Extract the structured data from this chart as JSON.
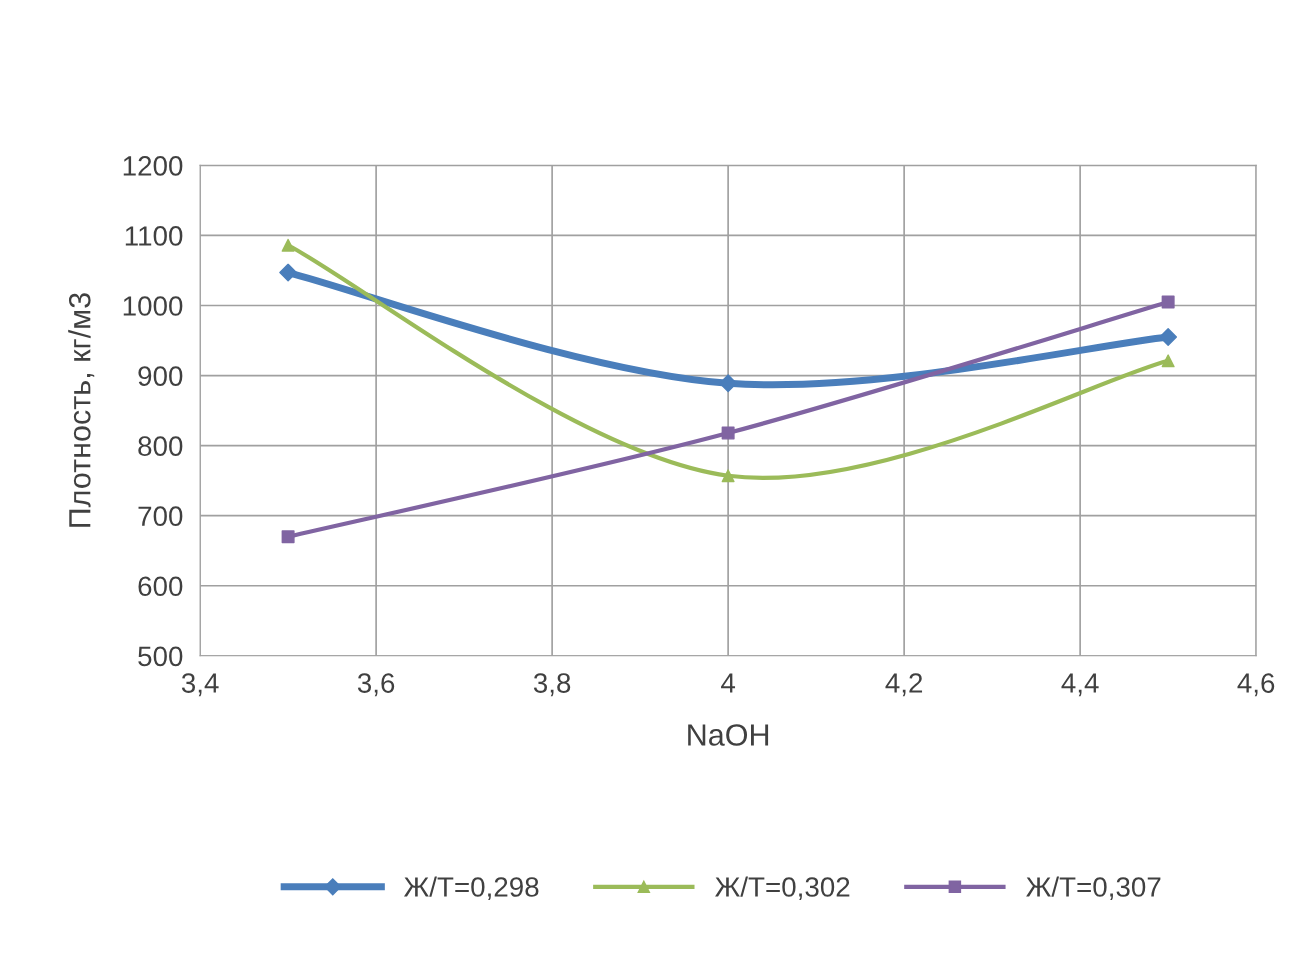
{
  "chart_data": {
    "type": "line",
    "xlabel": "NaOH",
    "ylabel": "Плотность, кг/м3",
    "x": [
      3.5,
      4,
      4.5
    ],
    "series": [
      {
        "name": "Ж/Т=0,298",
        "color": "#4a7ebb",
        "values": [
          1047,
          889,
          955
        ],
        "marker": "diamond"
      },
      {
        "name": "Ж/Т=0,302",
        "color": "#9bbb59",
        "values": [
          1086,
          757,
          921
        ],
        "marker": "triangle"
      },
      {
        "name": "Ж/Т=0,307",
        "color": "#8064a2",
        "values": [
          670,
          818,
          1005
        ],
        "marker": "square"
      }
    ],
    "xlim": [
      3.4,
      4.6
    ],
    "xticks": [
      {
        "value": 3.4,
        "label": "3,4"
      },
      {
        "value": 3.6,
        "label": "3,6"
      },
      {
        "value": 3.8,
        "label": "3,8"
      },
      {
        "value": 4,
        "label": "4"
      },
      {
        "value": 4.2,
        "label": "4,2"
      },
      {
        "value": 4.4,
        "label": "4,4"
      },
      {
        "value": 4.6,
        "label": "4,6"
      }
    ],
    "ylim": [
      500,
      1200
    ],
    "yticks": [
      500,
      600,
      700,
      800,
      900,
      1000,
      1100,
      1200
    ],
    "grid": true,
    "legend": "bottom",
    "line_style": "solid"
  }
}
